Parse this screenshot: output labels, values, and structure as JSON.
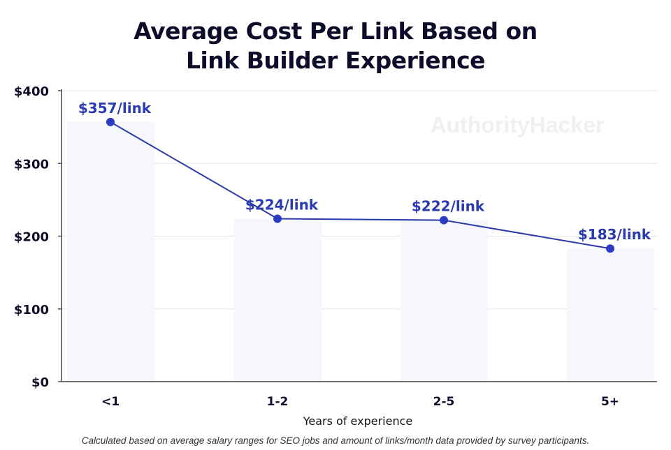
{
  "chart_data": {
    "type": "bar+line",
    "title_lines": [
      "Average Cost Per Link Based on",
      "Link Builder Experience"
    ],
    "xlabel": "Years of experience",
    "ylabel": "",
    "categories": [
      "<1",
      "1-2",
      "2-5",
      "5+"
    ],
    "values": [
      357,
      224,
      222,
      183
    ],
    "data_labels": [
      "$357/link",
      "$224/link",
      "$222/link",
      "$183/link"
    ],
    "ylim": [
      0,
      400
    ],
    "yticks": [
      0,
      100,
      200,
      300,
      400
    ],
    "ytick_labels": [
      "$0",
      "$100",
      "$200",
      "$300",
      "$400"
    ],
    "grid": true,
    "watermark": "AuthorityHacker",
    "footnote": "Calculated based on average salary ranges for SEO jobs and amount of links/month data provided by survey participants.",
    "colors": {
      "line": "#2a3aa8",
      "point": "#2b3bc4",
      "label": "#2b3bb0",
      "bar": "#f6f7fd",
      "grid": "#e6e6e6",
      "text": "#0d0d2b"
    }
  }
}
